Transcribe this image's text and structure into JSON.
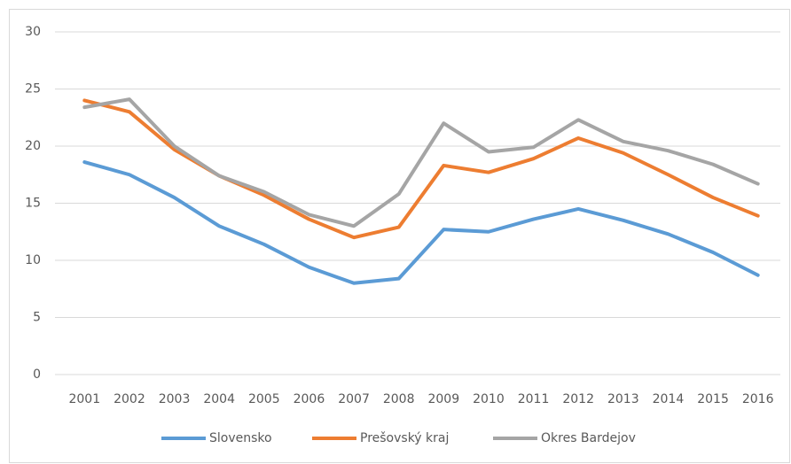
{
  "chart_data": {
    "type": "line",
    "categories": [
      "2001",
      "2002",
      "2003",
      "2004",
      "2005",
      "2006",
      "2007",
      "2008",
      "2009",
      "2010",
      "2011",
      "2012",
      "2013",
      "2014",
      "2015",
      "2016"
    ],
    "series": [
      {
        "name": "Slovensko",
        "color": "#5b9bd5",
        "values": [
          18.6,
          17.5,
          15.5,
          13.0,
          11.4,
          9.4,
          8.0,
          8.4,
          12.7,
          12.5,
          13.6,
          14.5,
          13.5,
          12.3,
          10.7,
          8.7
        ]
      },
      {
        "name": "Prešovský kraj",
        "color": "#ed7d31",
        "values": [
          24.0,
          23.0,
          19.7,
          17.4,
          15.7,
          13.6,
          12.0,
          12.9,
          18.3,
          17.7,
          18.9,
          20.7,
          19.4,
          17.5,
          15.5,
          13.9
        ]
      },
      {
        "name": "Okres Bardejov",
        "color": "#a5a5a5",
        "values": [
          23.4,
          24.1,
          20.0,
          17.4,
          16.0,
          14.0,
          13.0,
          15.8,
          22.0,
          19.5,
          19.9,
          22.3,
          20.4,
          19.6,
          18.4,
          16.7
        ]
      }
    ],
    "ylim": [
      0,
      30
    ],
    "yticks": [
      0,
      5,
      10,
      15,
      20,
      25,
      30
    ],
    "grid": true,
    "legend": "bottom"
  }
}
